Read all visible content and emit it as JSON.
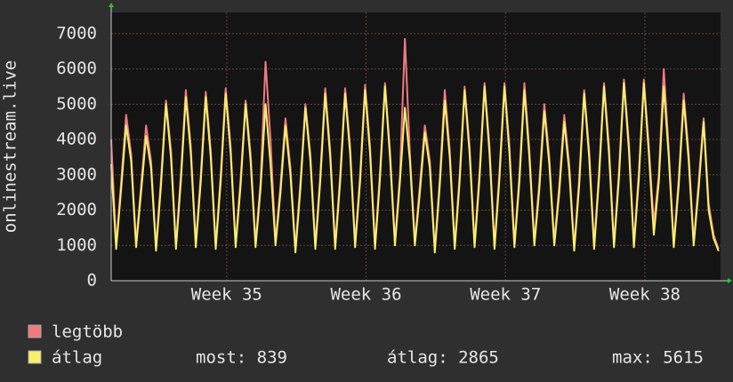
{
  "chart_data": {
    "type": "line",
    "y_label": "onlinestream.live",
    "x": [
      0,
      0.25,
      0.5,
      0.75,
      1,
      1.25,
      1.5,
      1.75,
      2,
      2.25,
      2.5,
      2.75,
      3,
      3.25,
      3.5,
      3.75,
      4,
      4.25,
      4.5,
      4.75,
      5,
      5.25,
      5.5,
      5.75,
      6,
      6.25,
      6.5,
      6.75,
      7,
      7.25,
      7.5,
      7.75,
      8,
      8.25,
      8.5,
      8.75,
      9,
      9.25,
      9.5,
      9.75,
      10,
      10.25,
      10.5,
      10.75,
      11,
      11.25,
      11.5,
      11.75,
      12,
      12.25,
      12.5,
      12.75,
      13,
      13.25,
      13.5,
      13.75,
      14,
      14.25,
      14.5,
      14.75,
      15,
      15.25,
      15.5,
      15.75,
      16,
      16.25,
      16.5,
      16.75,
      17,
      17.25,
      17.5,
      17.75,
      18,
      18.25,
      18.5,
      18.75,
      19,
      19.25,
      19.5,
      19.75,
      20,
      20.25,
      20.5,
      20.75,
      21,
      21.25,
      21.5,
      21.75,
      22,
      22.25,
      22.5,
      22.75,
      23,
      23.25,
      23.5,
      23.75,
      24,
      24.25,
      24.5,
      24.75,
      25,
      25.25,
      25.5,
      25.75,
      26,
      26.25,
      26.5,
      26.75,
      27,
      27.25,
      27.5,
      27.75,
      28,
      28.25,
      28.5,
      28.75,
      29,
      29.25,
      29.5,
      29.75,
      30,
      30.25,
      30.5
    ],
    "series": [
      {
        "name": "legtöbb",
        "color": "#f07a80",
        "values": [
          4000,
          1000,
          2800,
          4700,
          3600,
          1050,
          2700,
          4400,
          3400,
          950,
          2900,
          5100,
          3700,
          1000,
          3000,
          5400,
          3800,
          1050,
          3000,
          5350,
          3700,
          1000,
          3000,
          5450,
          3800,
          1050,
          2900,
          5100,
          3600,
          1050,
          2800,
          6200,
          4000,
          1100,
          2700,
          4600,
          3200,
          900,
          2800,
          5000,
          3600,
          1000,
          3000,
          5450,
          3700,
          1000,
          3000,
          5450,
          3800,
          1050,
          3000,
          5550,
          3800,
          1000,
          3100,
          5600,
          3700,
          1100,
          3000,
          6850,
          3600,
          1100,
          2700,
          4400,
          3400,
          900,
          2900,
          5400,
          3700,
          1000,
          3000,
          5500,
          3800,
          1050,
          3100,
          5600,
          3800,
          1000,
          3100,
          5600,
          3800,
          1050,
          3000,
          5600,
          3700,
          1100,
          2800,
          5000,
          3500,
          1100,
          2700,
          4700,
          3300,
          950,
          2900,
          5400,
          3700,
          1000,
          3100,
          5600,
          3800,
          1050,
          3100,
          5700,
          3900,
          1050,
          3100,
          5700,
          3800,
          1600,
          3000,
          6000,
          3700,
          1050,
          2900,
          5300,
          3600,
          1100,
          2800,
          4600,
          2200,
          1300,
          900
        ]
      },
      {
        "name": "átlag",
        "color": "#f7ef6e",
        "values": [
          3300,
          900,
          2600,
          4400,
          3400,
          950,
          2500,
          4100,
          3200,
          850,
          2700,
          5000,
          3500,
          900,
          2800,
          5200,
          3600,
          950,
          2800,
          5200,
          3500,
          900,
          2800,
          5300,
          3600,
          950,
          2700,
          5000,
          3400,
          950,
          2600,
          5000,
          3300,
          1000,
          2500,
          4400,
          3000,
          800,
          2600,
          4900,
          3400,
          900,
          2800,
          5300,
          3500,
          900,
          2800,
          5300,
          3600,
          950,
          2800,
          5400,
          3600,
          900,
          2900,
          5500,
          3500,
          1000,
          2800,
          4900,
          3400,
          1000,
          2500,
          4200,
          3200,
          800,
          2700,
          5100,
          3500,
          900,
          2800,
          5400,
          3600,
          950,
          2900,
          5500,
          3600,
          900,
          2900,
          5500,
          3600,
          950,
          2800,
          5400,
          3500,
          1000,
          2600,
          4800,
          3300,
          1000,
          2500,
          4500,
          3100,
          850,
          2700,
          5300,
          3500,
          900,
          2900,
          5500,
          3600,
          950,
          2900,
          5600,
          3700,
          950,
          2900,
          5600,
          3600,
          1300,
          2800,
          5500,
          3500,
          950,
          2700,
          5100,
          3400,
          1000,
          2600,
          4500,
          2000,
          1200,
          839
        ]
      }
    ],
    "summary": [
      "most: 839",
      "átlag: 2865",
      "max: 5615"
    ],
    "xlim": [
      0,
      30.6
    ],
    "xticks": [
      {
        "value": 5.8,
        "label": "Week 35"
      },
      {
        "value": 12.8,
        "label": "Week 36"
      },
      {
        "value": 19.8,
        "label": "Week 37"
      },
      {
        "value": 26.8,
        "label": "Week 38"
      }
    ],
    "ylim": [
      0,
      7600
    ],
    "yticks": [
      0,
      1000,
      2000,
      3000,
      4000,
      5000,
      6000,
      7000
    ],
    "grid": true
  }
}
